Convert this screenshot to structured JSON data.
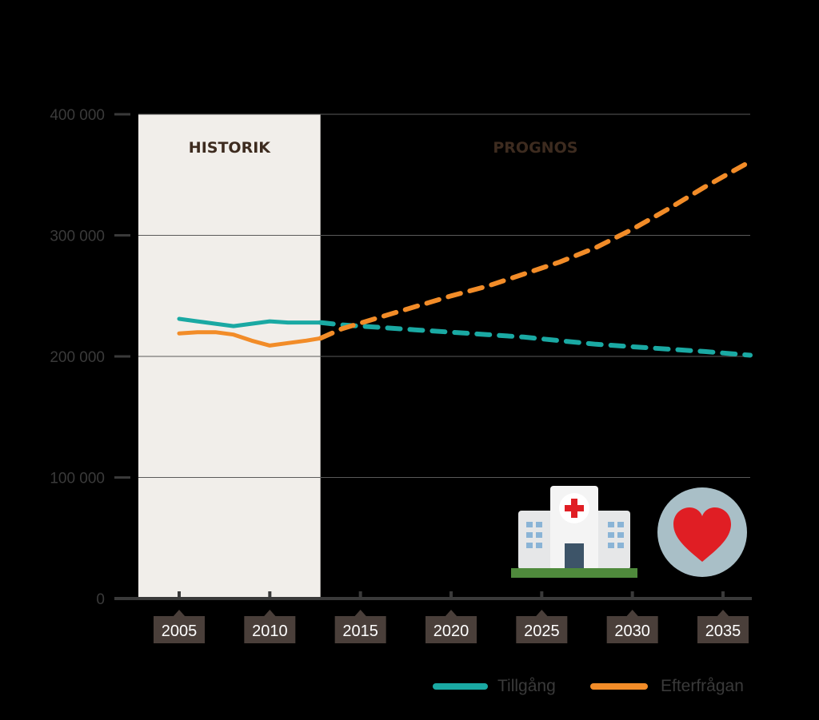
{
  "chart_data": {
    "type": "line",
    "title": "",
    "xlabel": "",
    "ylabel": "",
    "xlim": [
      2002.75,
      2036.5
    ],
    "ylim": [
      0,
      400000
    ],
    "y_ticks": [
      0,
      100000,
      200000,
      300000,
      400000
    ],
    "y_tick_labels": [
      "0",
      "100 000",
      "200 000",
      "300 000",
      "400 000"
    ],
    "x_ticks": [
      2005,
      2010,
      2015,
      2020,
      2025,
      2030,
      2035
    ],
    "x_tick_labels": [
      "2005",
      "2010",
      "2015",
      "2020",
      "2025",
      "2030",
      "2035"
    ],
    "grid": true,
    "legend_position": "bottom-right",
    "regions": [
      {
        "label": "HISTORIK",
        "from": 2002.75,
        "to": 2012.8,
        "fill": "#f1eeea"
      },
      {
        "label": "PROGNOS",
        "from": 2012.8,
        "to": 2036.5,
        "fill": "#000000"
      }
    ],
    "series": [
      {
        "name": "Tillgång",
        "color": "#1aa9a3",
        "historic": {
          "x": [
            2005,
            2006,
            2007,
            2008,
            2009,
            2010,
            2011,
            2012,
            2012.8
          ],
          "y": [
            231000,
            229000,
            227000,
            225000,
            227000,
            229000,
            228000,
            228000,
            228000
          ]
        },
        "forecast": {
          "x": [
            2012.8,
            2014,
            2016,
            2018,
            2020,
            2022,
            2024,
            2026,
            2028,
            2030,
            2032,
            2034,
            2036.5
          ],
          "y": [
            228000,
            226000,
            224000,
            222000,
            220000,
            218000,
            216000,
            213000,
            210000,
            208000,
            206000,
            204000,
            201000
          ]
        }
      },
      {
        "name": "Efterfrågan",
        "color": "#f28c28",
        "historic": {
          "x": [
            2005,
            2006,
            2007,
            2008,
            2009,
            2010,
            2011,
            2012,
            2012.8
          ],
          "y": [
            219000,
            220000,
            220000,
            218000,
            213000,
            209000,
            211000,
            213000,
            215000
          ]
        },
        "forecast": {
          "x": [
            2012.8,
            2014,
            2016,
            2018,
            2020,
            2022,
            2024,
            2026,
            2028,
            2030,
            2032,
            2034,
            2036.5
          ],
          "y": [
            215000,
            223000,
            232000,
            241000,
            250000,
            258000,
            268000,
            278000,
            290000,
            305000,
            322000,
            340000,
            361000
          ]
        }
      }
    ]
  },
  "icons": {
    "hospital": "hospital-icon",
    "heart": "heart-icon",
    "accent_red": "#e01e24",
    "icon_bg": "#a9bfc7"
  }
}
